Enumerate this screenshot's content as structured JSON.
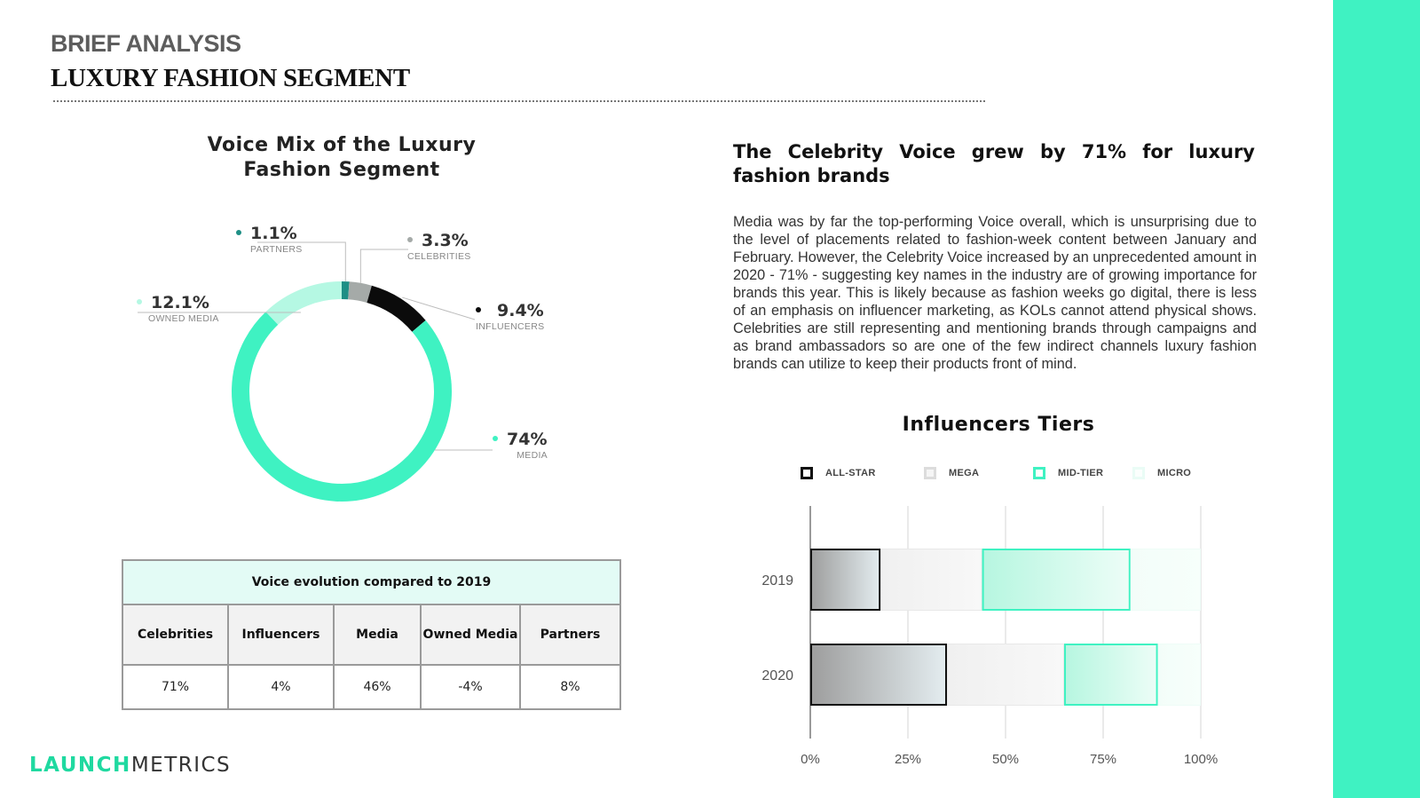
{
  "header": {
    "kicker": "BRIEF ANALYSIS",
    "title": "LUXURY FASHION SEGMENT"
  },
  "colors": {
    "accent": "#3ff2c2",
    "media": "#3ff2c2",
    "owned_media": "#b5f8e3",
    "partners": "#1e8f85",
    "celebrities": "#a5aaa8",
    "influencers": "#0b0b0b"
  },
  "chart_data": [
    {
      "type": "pie",
      "style": "donut",
      "title": "Voice Mix of the Luxury Fashion Segment",
      "slices": [
        {
          "label": "PARTNERS",
          "value": 1.1,
          "display": "1.1%",
          "color": "#1e8f85"
        },
        {
          "label": "CELEBRITIES",
          "value": 3.3,
          "display": "3.3%",
          "color": "#a5aaa8"
        },
        {
          "label": "INFLUENCERS",
          "value": 9.4,
          "display": "9.4%",
          "color": "#0b0b0b"
        },
        {
          "label": "MEDIA",
          "value": 74,
          "display": "74%",
          "color": "#3ff2c2"
        },
        {
          "label": "OWNED MEDIA",
          "value": 12.1,
          "display": "12.1%",
          "color": "#b5f8e3"
        }
      ]
    },
    {
      "type": "bar",
      "orientation": "horizontal",
      "stacked": true,
      "title": "Influencers Tiers",
      "categories": [
        "2019",
        "2020"
      ],
      "series": [
        {
          "name": "ALL-STAR",
          "values": [
            18,
            35
          ]
        },
        {
          "name": "MEGA",
          "values": [
            26,
            30
          ]
        },
        {
          "name": "MID-TIER",
          "values": [
            38,
            24
          ]
        },
        {
          "name": "MICRO",
          "values": [
            18,
            11
          ]
        }
      ],
      "xlim": [
        0,
        100
      ],
      "xticks": [
        "0%",
        "25%",
        "50%",
        "75%",
        "100%"
      ],
      "legend": "top",
      "grid": true
    }
  ],
  "table": {
    "caption": "Voice evolution compared to 2019",
    "headers": [
      "Celebrities",
      "Influencers",
      "Media",
      "Owned Media",
      "Partners"
    ],
    "values": [
      "71%",
      "4%",
      "46%",
      "-4%",
      "8%"
    ]
  },
  "right": {
    "headline": "The Celebrity Voice grew by 71% for luxury fashion brands",
    "body": "Media was by far the top-performing Voice overall, which is unsurprising due to the level of placements related to fashion-week content between January and February. However, the Celebrity Voice increased by an unprecedented amount in 2020 - 71% - suggesting key names in the industry are of growing importance for brands this year. This is likely because as fashion weeks go digital, there is less of an emphasis on influencer marketing, as KOLs cannot attend physical shows. Celebrities are still representing and mentioning brands through campaigns and as brand ambassadors so are one of the few indirect channels luxury fashion brands can utilize to keep their products front of mind."
  },
  "logo": {
    "part1": "LAUNCH",
    "part2": "METRICS"
  }
}
